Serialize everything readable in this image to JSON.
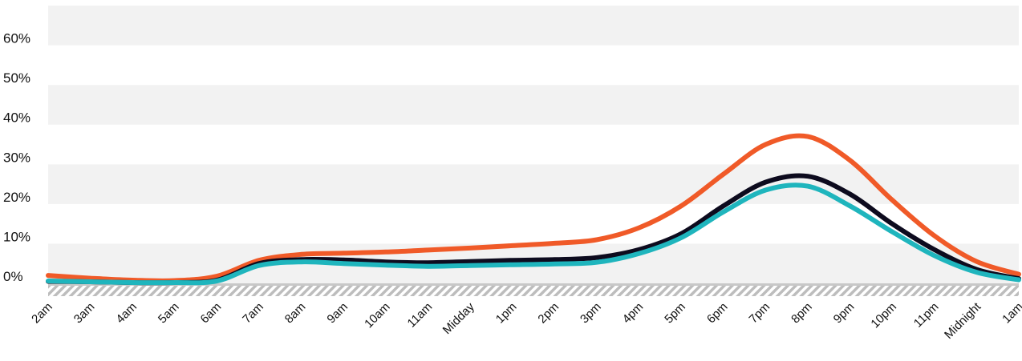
{
  "chart_data": {
    "type": "line",
    "title": "",
    "xlabel": "",
    "ylabel": "",
    "ylim": [
      0,
      70
    ],
    "y_ticks": [
      "0%",
      "10%",
      "20%",
      "30%",
      "40%",
      "50%",
      "60%"
    ],
    "y_tick_values": [
      0,
      10,
      20,
      30,
      40,
      50,
      60
    ],
    "categories": [
      "2am",
      "3am",
      "4am",
      "5am",
      "6am",
      "7am",
      "8am",
      "9am",
      "10am",
      "11am",
      "Midday",
      "1pm",
      "2pm",
      "3pm",
      "4pm",
      "5pm",
      "6pm",
      "7pm",
      "8pm",
      "9pm",
      "10pm",
      "11pm",
      "Midnight",
      "1am"
    ],
    "grid": true,
    "legend": "none",
    "series": [
      {
        "color": "#f05a28",
        "values": [
          2.0,
          1.3,
          0.8,
          0.7,
          1.8,
          5.8,
          7.3,
          7.6,
          7.9,
          8.4,
          8.9,
          9.5,
          10.1,
          11.0,
          14.0,
          19.5,
          27.5,
          35.0,
          37.0,
          31.0,
          21.0,
          12.0,
          5.5,
          2.3
        ]
      },
      {
        "color": "#0d0b1e",
        "values": [
          0.5,
          0.4,
          0.2,
          0.2,
          0.8,
          5.0,
          6.0,
          5.9,
          5.4,
          5.2,
          5.5,
          5.8,
          6.0,
          6.5,
          8.5,
          12.5,
          19.5,
          25.5,
          27.0,
          22.5,
          15.0,
          8.5,
          3.5,
          1.2
        ]
      },
      {
        "color": "#1fb5bd",
        "values": [
          0.6,
          0.4,
          0.2,
          0.2,
          0.6,
          4.5,
          5.4,
          5.0,
          4.6,
          4.3,
          4.5,
          4.7,
          4.9,
          5.3,
          7.5,
          11.5,
          18.0,
          23.5,
          24.5,
          19.5,
          13.0,
          7.0,
          2.8,
          0.9
        ]
      }
    ]
  }
}
